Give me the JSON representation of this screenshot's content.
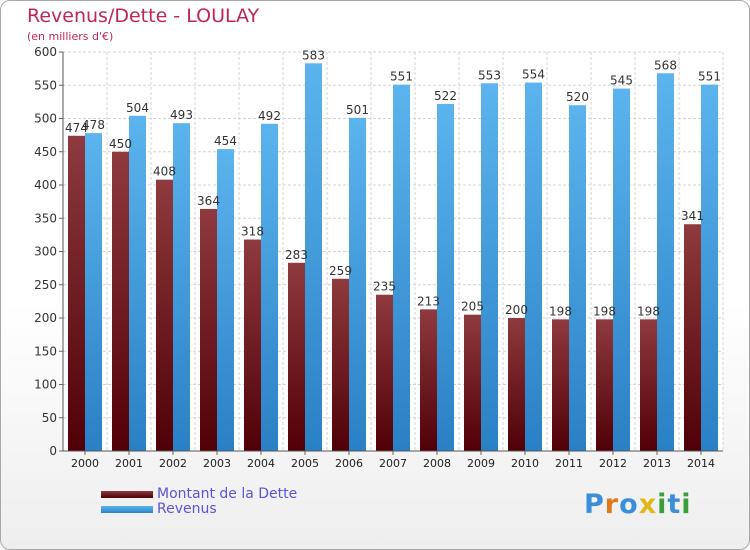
{
  "header": {
    "title": "Revenus/Dette - LOULAY",
    "subtitle": "(en milliers d'€)"
  },
  "chart_data": {
    "type": "bar",
    "title": "Revenus/Dette - LOULAY",
    "subtitle": "(en milliers d'€)",
    "xlabel": "",
    "ylabel": "",
    "ylim": [
      0,
      600
    ],
    "yticks": [
      0,
      50,
      100,
      150,
      200,
      250,
      300,
      350,
      400,
      450,
      500,
      550,
      600
    ],
    "grid": true,
    "categories": [
      "2000",
      "2001",
      "2002",
      "2003",
      "2004",
      "2005",
      "2006",
      "2007",
      "2008",
      "2009",
      "2010",
      "2011",
      "2012",
      "2013",
      "2014"
    ],
    "series": [
      {
        "name": "Montant de la Dette",
        "color": "#7a2a2e",
        "values": [
          474,
          450,
          408,
          364,
          318,
          283,
          259,
          235,
          213,
          205,
          200,
          198,
          198,
          198,
          341
        ]
      },
      {
        "name": "Revenus",
        "color": "#4da6e8",
        "values": [
          478,
          504,
          493,
          454,
          492,
          583,
          501,
          551,
          522,
          553,
          554,
          520,
          545,
          568,
          551
        ]
      }
    ],
    "legend_position": "bottom-left"
  },
  "legend": {
    "items": [
      {
        "label": "Montant de la Dette"
      },
      {
        "label": "Revenus"
      }
    ]
  },
  "logo": {
    "letters": [
      "P",
      "r",
      "o",
      "x",
      "i",
      "t",
      "i"
    ],
    "colors": [
      "#3a8fd8",
      "#e07a1a",
      "#3a8fd8",
      "#e0b81a",
      "#3a9f3a",
      "#3a8fd8",
      "#3a9f3a"
    ]
  }
}
